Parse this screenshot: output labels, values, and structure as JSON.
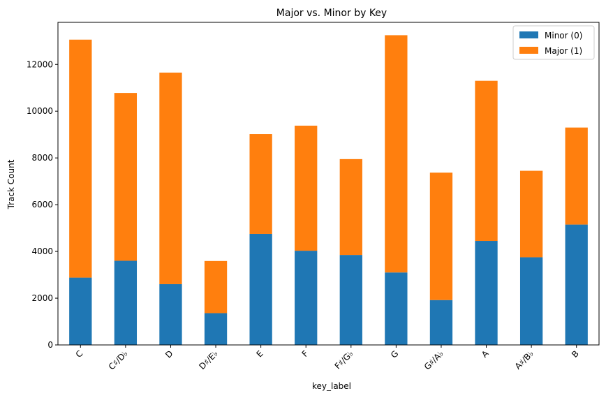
{
  "chart_data": {
    "type": "bar",
    "stacked": true,
    "title": "Major vs. Minor by Key",
    "xlabel": "key_label",
    "ylabel": "Track Count",
    "categories": [
      "C",
      "C♯/D♭",
      "D",
      "D♯/E♭",
      "E",
      "F",
      "F♯/G♭",
      "G",
      "G♯/A♭",
      "A",
      "A♯/B♭",
      "B"
    ],
    "series": [
      {
        "name": "Minor (0)",
        "color": "#1f77b4",
        "values": [
          2880,
          3600,
          2600,
          1360,
          4750,
          4030,
          3850,
          3100,
          1920,
          4450,
          3750,
          5150
        ]
      },
      {
        "name": "Major (1)",
        "color": "#ff7f0e",
        "values": [
          10180,
          7180,
          9050,
          2230,
          4270,
          5350,
          4100,
          10150,
          5450,
          6850,
          3700,
          4150
        ]
      }
    ],
    "ylim": [
      0,
      13800
    ],
    "yticks": [
      0,
      2000,
      4000,
      6000,
      8000,
      10000,
      12000
    ],
    "ytick_labels": [
      "0",
      "2000",
      "4000",
      "6000",
      "8000",
      "10000",
      "12000"
    ],
    "grid": false,
    "legend_position": "top-right"
  }
}
